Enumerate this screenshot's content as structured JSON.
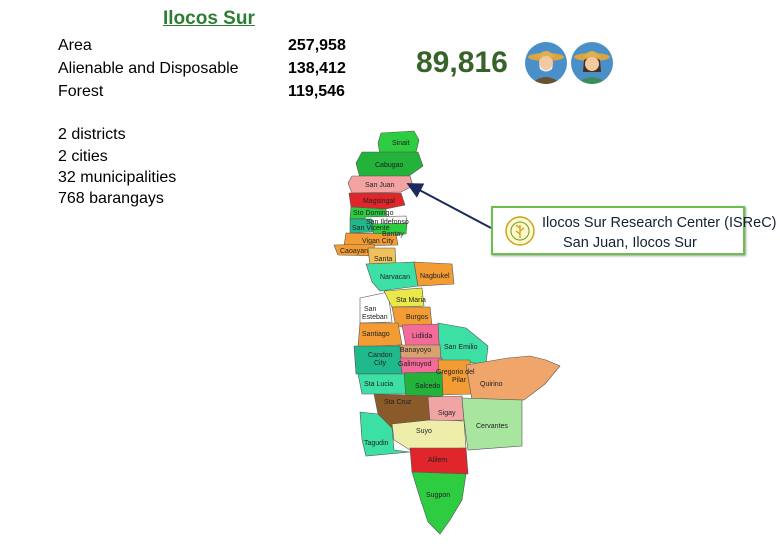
{
  "province": "Ilocos Sur",
  "stats": [
    {
      "label": "Area",
      "value": "257,958"
    },
    {
      "label": "Alienable and Disposable",
      "value": "138,412"
    },
    {
      "label": "Forest",
      "value": "119,546"
    }
  ],
  "farmers_count": "89,816",
  "admin": [
    "2 districts",
    "2 cities",
    "32 municipalities",
    "768 barangays"
  ],
  "callout": {
    "line1": "Ilocos Sur Research Center (ISReC)",
    "line2": "San Juan, Ilocos Sur"
  },
  "map_labels": {
    "sinait": "Sinait",
    "cabugao": "Cabugao",
    "san_juan": "San Juan",
    "magsingal": "Magsingal",
    "sto_domingo": "Sto Domingo",
    "san_ildefonso": "San Ildefonso",
    "san_vicente": "San Vicente",
    "bantay": "Bantay",
    "vigan": "Vigan City",
    "caoayan": "Caoayan",
    "santa": "Santa",
    "narvacan": "Narvacan",
    "nagbukel": "Nagbukel",
    "sta_maria": "Sta Maria",
    "san_esteban_1": "San",
    "san_esteban_2": "Esteban",
    "burgos": "Burgos",
    "santiago": "Santiago",
    "lidlida": "Lidlida",
    "banayoyo": "Banayoyo",
    "san_emilio": "San Emilio",
    "candon_1": "Candon",
    "candon_2": "City",
    "galimuyod": "Galimuyod",
    "gregorio_1": "Gregorio del",
    "gregorio_2": "Pilar",
    "quirino": "Quirino",
    "sta_lucia": "Sta Lucia",
    "salcedo": "Salcedo",
    "sta_cruz": "Sta Cruz",
    "sigay": "Sigay",
    "suyo": "Suyo",
    "cervantes": "Cervantes",
    "tagudin": "Tagudin",
    "alilem": "Alilem",
    "sugpon": "Sugpon"
  },
  "colors": {
    "title": "#2e7d32",
    "farmers": "#37632b",
    "callout_border": "#6cbf4a",
    "arrow": "#1a2a5e"
  }
}
